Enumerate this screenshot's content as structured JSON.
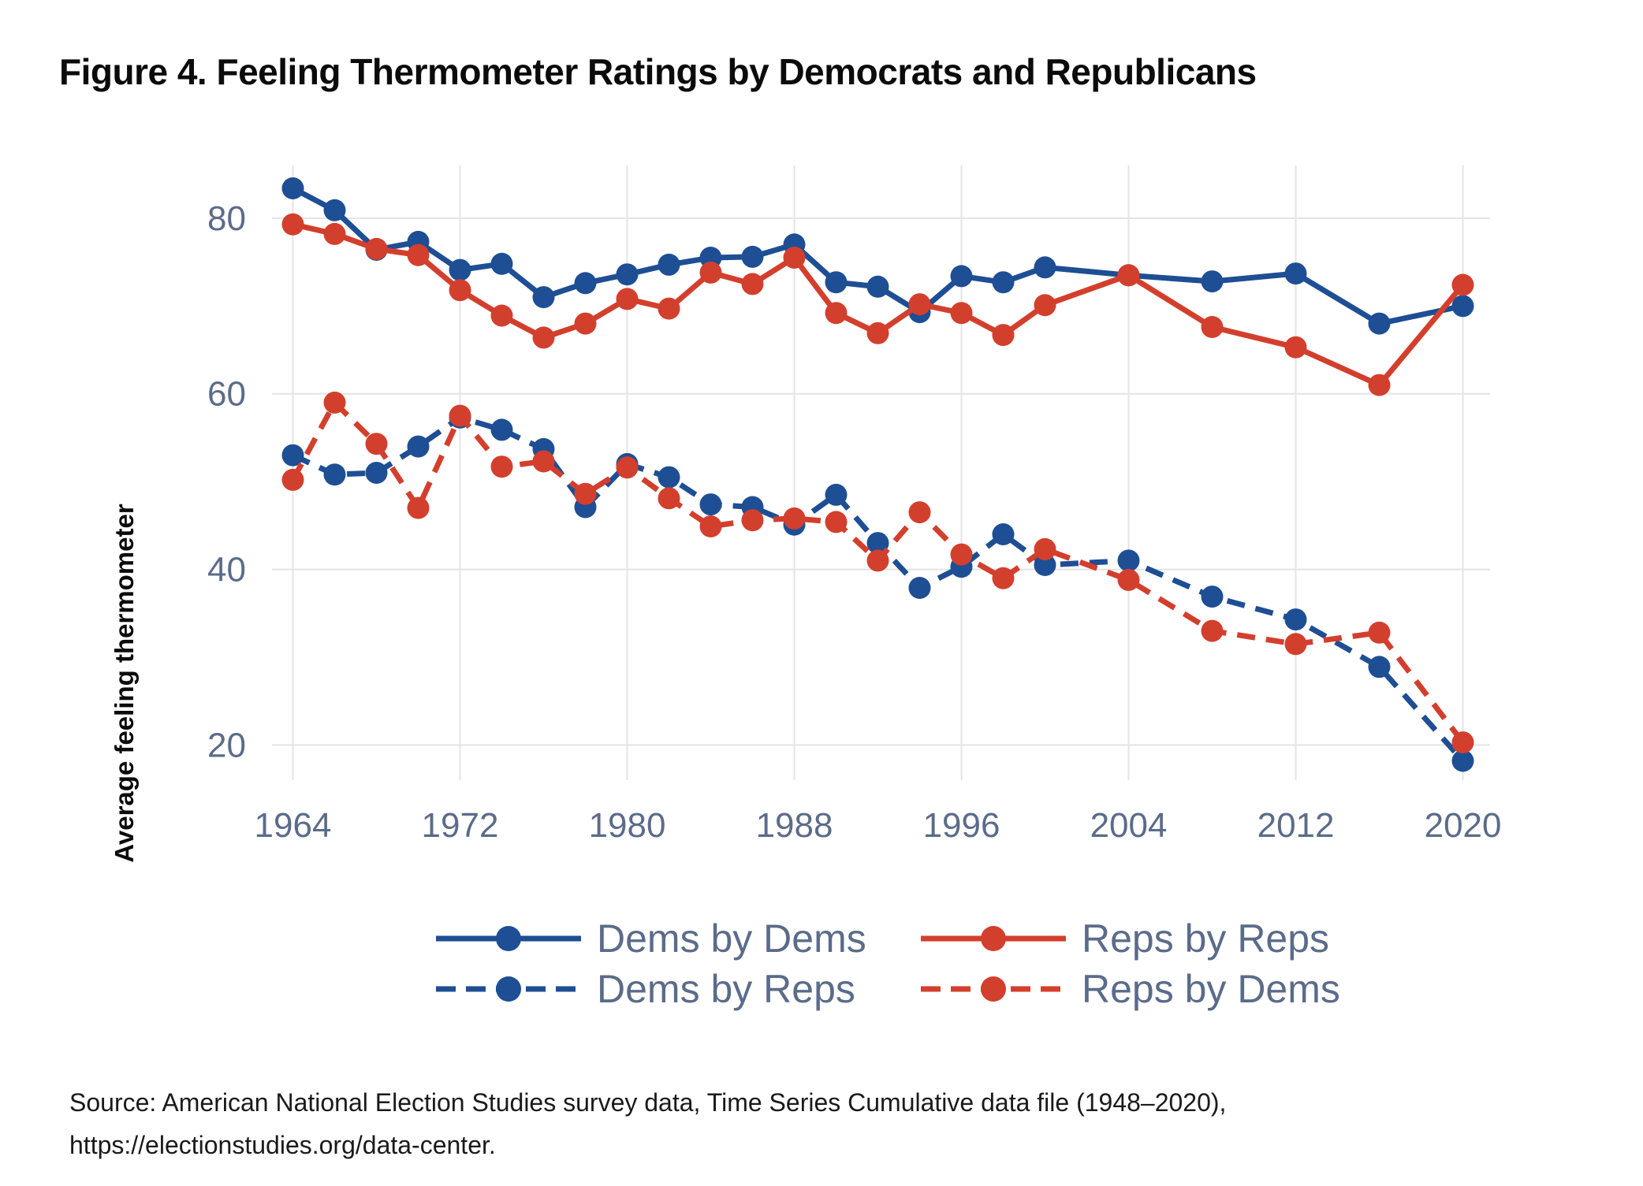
{
  "title": "Figure 4. Feeling Thermometer Ratings by Democrats and Republicans",
  "y_axis_label": "Average feeling thermometer",
  "source": {
    "line1": "Source: American National Election Studies survey data, Time Series Cumulative data file (1948–2020),",
    "line2": "https://electionstudies.org/data-center."
  },
  "colors": {
    "dem_blue": "#1e4e94",
    "rep_red": "#d33f2d",
    "tick_text": "#5b6b8a",
    "grid": "#e4e4e4"
  },
  "chart_data": {
    "type": "line",
    "title": "Figure 4. Feeling Thermometer Ratings by Democrats and Republicans",
    "xlabel": "",
    "ylabel": "Average feeling thermometer",
    "x": [
      1964,
      1966,
      1968,
      1970,
      1972,
      1974,
      1976,
      1978,
      1980,
      1982,
      1984,
      1986,
      1988,
      1990,
      1992,
      1994,
      1996,
      1998,
      2000,
      2004,
      2008,
      2012,
      2016,
      2020
    ],
    "series": [
      {
        "name": "Dems by Dems",
        "color_key": "dem_blue",
        "dashed": false,
        "values": [
          83.4,
          80.9,
          76.4,
          77.3,
          74.1,
          74.8,
          71.0,
          72.6,
          73.6,
          74.7,
          75.5,
          75.6,
          77.0,
          72.7,
          72.2,
          69.3,
          73.4,
          72.7,
          74.4,
          73.5,
          72.8,
          73.7,
          68.0,
          70.0
        ]
      },
      {
        "name": "Reps by Reps",
        "color_key": "rep_red",
        "dashed": false,
        "values": [
          79.3,
          78.2,
          76.5,
          75.8,
          71.8,
          68.9,
          66.4,
          68.0,
          70.8,
          69.7,
          73.8,
          72.5,
          75.5,
          69.2,
          66.9,
          70.2,
          69.2,
          66.7,
          70.1,
          73.5,
          67.6,
          65.3,
          61.0,
          72.4
        ]
      },
      {
        "name": "Dems by Reps",
        "color_key": "dem_blue",
        "dashed": true,
        "values": [
          53.0,
          50.8,
          51.0,
          54.0,
          57.3,
          55.9,
          53.7,
          47.1,
          52.0,
          50.5,
          47.4,
          47.1,
          45.1,
          48.5,
          43.0,
          37.9,
          40.3,
          44.0,
          40.5,
          41.0,
          36.9,
          34.3,
          28.9,
          18.2
        ]
      },
      {
        "name": "Reps by Dems",
        "color_key": "rep_red",
        "dashed": true,
        "values": [
          50.2,
          59.0,
          54.3,
          47.0,
          57.5,
          51.7,
          52.3,
          48.6,
          51.6,
          48.1,
          44.9,
          45.6,
          45.8,
          45.4,
          41.0,
          46.5,
          41.7,
          39.0,
          42.3,
          38.8,
          33.0,
          31.5,
          32.8,
          20.3
        ]
      }
    ],
    "x_ticks": [
      1964,
      1972,
      1980,
      1988,
      1996,
      2004,
      2012,
      2020
    ],
    "y_ticks": [
      20,
      40,
      60,
      80
    ],
    "xlim": [
      1963,
      2021.3
    ],
    "ylim": [
      16,
      86
    ],
    "grid": true,
    "legend_position": "bottom"
  }
}
